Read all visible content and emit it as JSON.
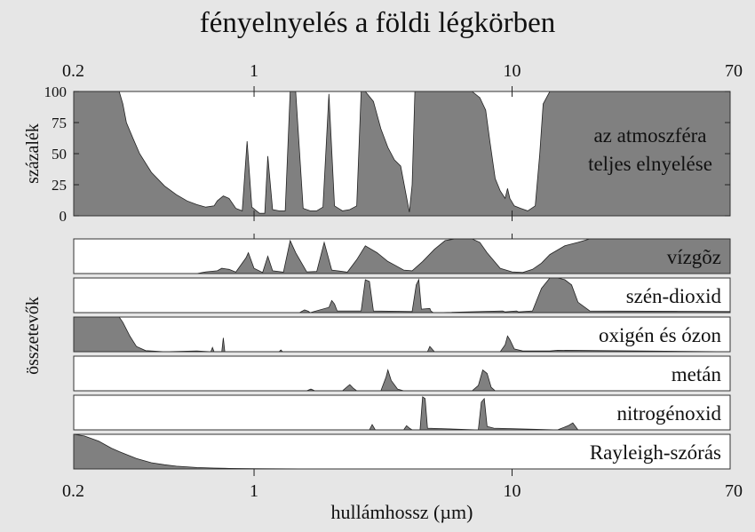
{
  "title": "fényelnyelés a földi légkörben",
  "chart_data": {
    "type": "area",
    "title": "fényelnyelés a földi légkörben",
    "xlabel": "hullámhossz (µm)",
    "x_scale": "log",
    "xlim": [
      0.2,
      70
    ],
    "x_ticks": [
      0.2,
      1,
      10,
      70
    ],
    "x_tick_labels": [
      "0.2",
      "1",
      "10",
      "70"
    ],
    "colors": {
      "fill": "#808080",
      "panel": "#ffffff",
      "background": "#e6e6e6"
    },
    "top_panel": {
      "ylabel": "százalék",
      "ylim": [
        0,
        100
      ],
      "y_ticks": [
        0,
        25,
        50,
        75,
        100
      ],
      "y_tick_labels": [
        "0",
        "25",
        "50",
        "75",
        "100"
      ],
      "label_lines": [
        "az atmoszféra",
        "teljes elnyelése"
      ],
      "series": [
        {
          "x": [
            0.2,
            0.3,
            0.31,
            0.32,
            0.34,
            0.36,
            0.4,
            0.45,
            0.5,
            0.55,
            0.6,
            0.65,
            0.7,
            0.72,
            0.76,
            0.8,
            0.85,
            0.9,
            0.94,
            0.98,
            1.05,
            1.1,
            1.13,
            1.18,
            1.25,
            1.32,
            1.38,
            1.45,
            1.55,
            1.65,
            1.75,
            1.85,
            1.95,
            2.05,
            2.2,
            2.35,
            2.5,
            2.6,
            2.7,
            2.9,
            3.1,
            3.3,
            3.5,
            3.7,
            3.9,
            4.0,
            4.1,
            4.2,
            4.3,
            4.6,
            4.8,
            5.0,
            5.5,
            6.0,
            6.5,
            7.0,
            7.5,
            7.9,
            8.2,
            8.6,
            9.0,
            9.4,
            9.6,
            9.8,
            10.2,
            10.8,
            11.5,
            12.3,
            12.8,
            13.2,
            14,
            16,
            18,
            20,
            25,
            30,
            40,
            50,
            70
          ],
          "y": [
            100,
            100,
            90,
            75,
            62,
            50,
            35,
            24,
            17,
            12,
            9,
            7,
            8,
            12,
            16,
            14,
            6,
            4,
            60,
            7,
            2,
            2,
            48,
            5,
            4,
            4,
            100,
            100,
            6,
            4,
            4,
            7,
            98,
            8,
            4,
            5,
            8,
            100,
            100,
            92,
            70,
            55,
            45,
            40,
            15,
            3,
            25,
            100,
            100,
            100,
            100,
            100,
            100,
            100,
            100,
            100,
            95,
            85,
            60,
            30,
            20,
            14,
            22,
            14,
            8,
            6,
            4,
            8,
            50,
            90,
            100,
            100,
            100,
            100,
            100,
            100,
            100,
            100,
            100
          ]
        }
      ]
    },
    "ylabel_bottom": "összetevők",
    "components": [
      {
        "name": "vízgõz",
        "x": [
          0.2,
          0.6,
          0.65,
          0.72,
          0.75,
          0.8,
          0.85,
          0.93,
          0.95,
          1.0,
          1.08,
          1.13,
          1.18,
          1.3,
          1.38,
          1.45,
          1.6,
          1.75,
          1.87,
          2.0,
          2.3,
          2.5,
          2.7,
          3.0,
          3.3,
          3.5,
          3.8,
          4.1,
          4.5,
          5.0,
          5.5,
          6.0,
          6.5,
          7.0,
          7.5,
          8.0,
          9.0,
          10,
          11,
          12,
          13,
          14,
          16,
          18,
          20,
          25,
          30,
          70
        ],
        "y": [
          0,
          0,
          5,
          8,
          15,
          12,
          4,
          45,
          60,
          15,
          3,
          50,
          8,
          4,
          95,
          60,
          5,
          6,
          90,
          10,
          4,
          40,
          80,
          60,
          35,
          25,
          10,
          8,
          35,
          70,
          95,
          100,
          100,
          100,
          90,
          60,
          15,
          5,
          3,
          12,
          30,
          55,
          80,
          90,
          100,
          100,
          100,
          100
        ]
      },
      {
        "name": "szén-dioxid",
        "x": [
          0.2,
          1.5,
          1.57,
          1.62,
          1.65,
          1.95,
          2.0,
          2.05,
          2.1,
          2.6,
          2.7,
          2.8,
          2.9,
          4.1,
          4.25,
          4.35,
          4.45,
          4.8,
          4.85,
          4.95,
          5.2,
          9.2,
          9.4,
          10.4,
          10.6,
          12,
          13,
          14,
          15,
          16,
          17,
          18,
          20,
          70
        ],
        "y": [
          0,
          0,
          8,
          4,
          0,
          15,
          35,
          25,
          5,
          5,
          95,
          90,
          5,
          3,
          80,
          95,
          10,
          12,
          4,
          0,
          0,
          5,
          2,
          5,
          2,
          5,
          70,
          100,
          100,
          95,
          80,
          30,
          5,
          3
        ]
      },
      {
        "name": "oxigén és ózon",
        "x": [
          0.2,
          0.3,
          0.31,
          0.33,
          0.35,
          0.38,
          0.45,
          0.6,
          0.68,
          0.69,
          0.7,
          0.75,
          0.76,
          0.77,
          0.8,
          1.25,
          1.27,
          1.29,
          2.0,
          4.7,
          4.8,
          5.0,
          9.0,
          9.4,
          9.6,
          9.8,
          10.2,
          11,
          14,
          15,
          70
        ],
        "y": [
          100,
          100,
          85,
          45,
          15,
          3,
          0,
          2,
          0,
          12,
          0,
          0,
          40,
          0,
          0,
          0,
          5,
          0,
          0,
          0,
          15,
          0,
          0,
          20,
          45,
          35,
          8,
          2,
          2,
          4,
          0
        ]
      },
      {
        "name": "metán",
        "x": [
          0.2,
          1.6,
          1.66,
          1.72,
          2.2,
          2.3,
          2.35,
          2.42,
          2.5,
          3.1,
          3.25,
          3.3,
          3.4,
          3.6,
          3.8,
          7.0,
          7.4,
          7.7,
          8.0,
          8.3,
          8.6,
          70
        ],
        "y": [
          0,
          0,
          5,
          0,
          0,
          12,
          18,
          8,
          0,
          0,
          40,
          60,
          30,
          5,
          0,
          0,
          15,
          60,
          50,
          10,
          0,
          0
        ]
      },
      {
        "name": "nitrogénoxid",
        "x": [
          0.2,
          2.8,
          2.87,
          2.95,
          3.8,
          3.9,
          4.0,
          4.1,
          4.4,
          4.5,
          4.6,
          4.7,
          7.4,
          7.6,
          7.8,
          8.0,
          8.5,
          15,
          16.5,
          17.2,
          18,
          70
        ],
        "y": [
          0,
          0,
          15,
          0,
          0,
          12,
          5,
          0,
          0,
          95,
          90,
          5,
          0,
          80,
          90,
          10,
          5,
          0,
          12,
          20,
          0,
          0
        ]
      },
      {
        "name": "Rayleigh-szórás",
        "x": [
          0.2,
          0.22,
          0.25,
          0.28,
          0.3,
          0.35,
          0.4,
          0.45,
          0.5,
          0.6,
          0.7,
          0.8,
          1.0,
          1.5,
          2,
          5,
          10,
          70
        ],
        "y": [
          100,
          95,
          80,
          60,
          50,
          30,
          18,
          12,
          8,
          4,
          2.5,
          1.5,
          0.8,
          0.3,
          0.1,
          0,
          0,
          0
        ]
      }
    ]
  }
}
